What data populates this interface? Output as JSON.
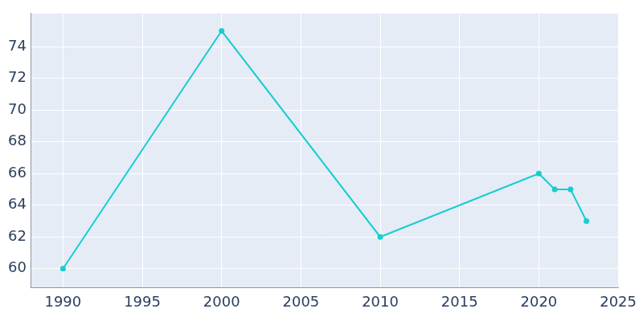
{
  "chart_data": {
    "type": "line",
    "x": [
      1990,
      2000,
      2010,
      2020,
      2021,
      2022,
      2023
    ],
    "values": [
      60,
      75,
      62,
      66,
      65,
      65,
      63
    ],
    "color": "#17cdd0",
    "marker": "circle",
    "xlim": [
      1988,
      2025
    ],
    "xticks": [
      1990,
      1995,
      2000,
      2005,
      2010,
      2015,
      2020,
      2025
    ],
    "ylim": [
      58.8,
      76.1
    ],
    "yticks": [
      60,
      62,
      64,
      66,
      68,
      70,
      72,
      74
    ],
    "grid": true
  }
}
